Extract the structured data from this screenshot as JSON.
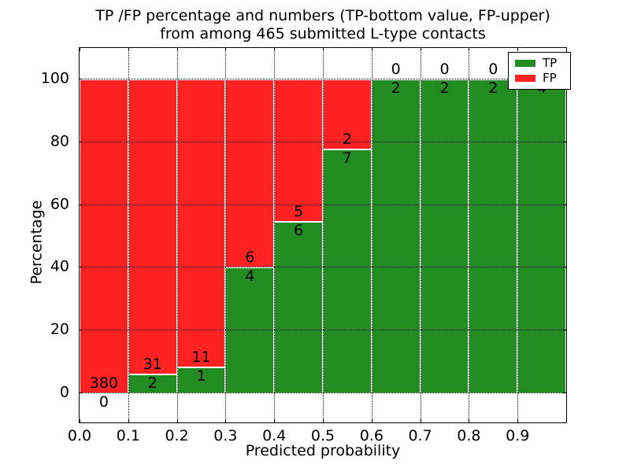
{
  "title": {
    "line1": "TP /FP percentage and numbers (TP-bottom value, FP-upper)",
    "line2": "from among 465 submitted L-type contacts"
  },
  "axes": {
    "xlabel": "Predicted probability",
    "ylabel": "Percentage",
    "x_tick_labels": [
      "0.0",
      "0.1",
      "0.2",
      "0.3",
      "0.4",
      "0.5",
      "0.6",
      "0.7",
      "0.8",
      "0.9"
    ],
    "y_tick_labels": [
      "0",
      "20",
      "40",
      "60",
      "80",
      "100"
    ],
    "xlim": [
      0.0,
      1.0
    ],
    "ylim": [
      -10,
      110
    ],
    "grid_style": "dotted"
  },
  "legend": {
    "position": "upper-right",
    "items": [
      {
        "label": "TP",
        "color": "#228b22"
      },
      {
        "label": "FP",
        "color": "#ff2222"
      }
    ]
  },
  "colors": {
    "tp_green": "#228b22",
    "fp_red": "#ff2222",
    "grid": "#000000",
    "background": "#ffffff",
    "text": "#000000"
  },
  "chart_data": {
    "type": "bar",
    "stacked": true,
    "normalized_to_percent": true,
    "title": "TP /FP percentage and numbers (TP-bottom value, FP-upper) from among 465 submitted L-type contacts",
    "xlabel": "Predicted probability",
    "ylabel": "Percentage",
    "total_submitted_contacts": 465,
    "bin_width": 0.1,
    "bin_left_edges": [
      0.0,
      0.1,
      0.2,
      0.3,
      0.4,
      0.5,
      0.6,
      0.7,
      0.8,
      0.9
    ],
    "series": [
      {
        "name": "TP",
        "color": "#228b22",
        "counts": [
          0,
          2,
          1,
          4,
          6,
          7,
          2,
          2,
          2,
          4
        ],
        "pct": [
          0,
          6.06,
          8.33,
          40,
          54.55,
          77.78,
          100,
          100,
          100,
          100
        ]
      },
      {
        "name": "FP",
        "color": "#ff2222",
        "counts": [
          380,
          31,
          11,
          6,
          5,
          2,
          0,
          0,
          0,
          0
        ],
        "pct": [
          100,
          93.94,
          91.67,
          60,
          45.45,
          22.22,
          0,
          0,
          0,
          0
        ]
      }
    ],
    "ylim": [
      -10,
      110
    ],
    "grid": true,
    "legend_position": "upper right"
  }
}
